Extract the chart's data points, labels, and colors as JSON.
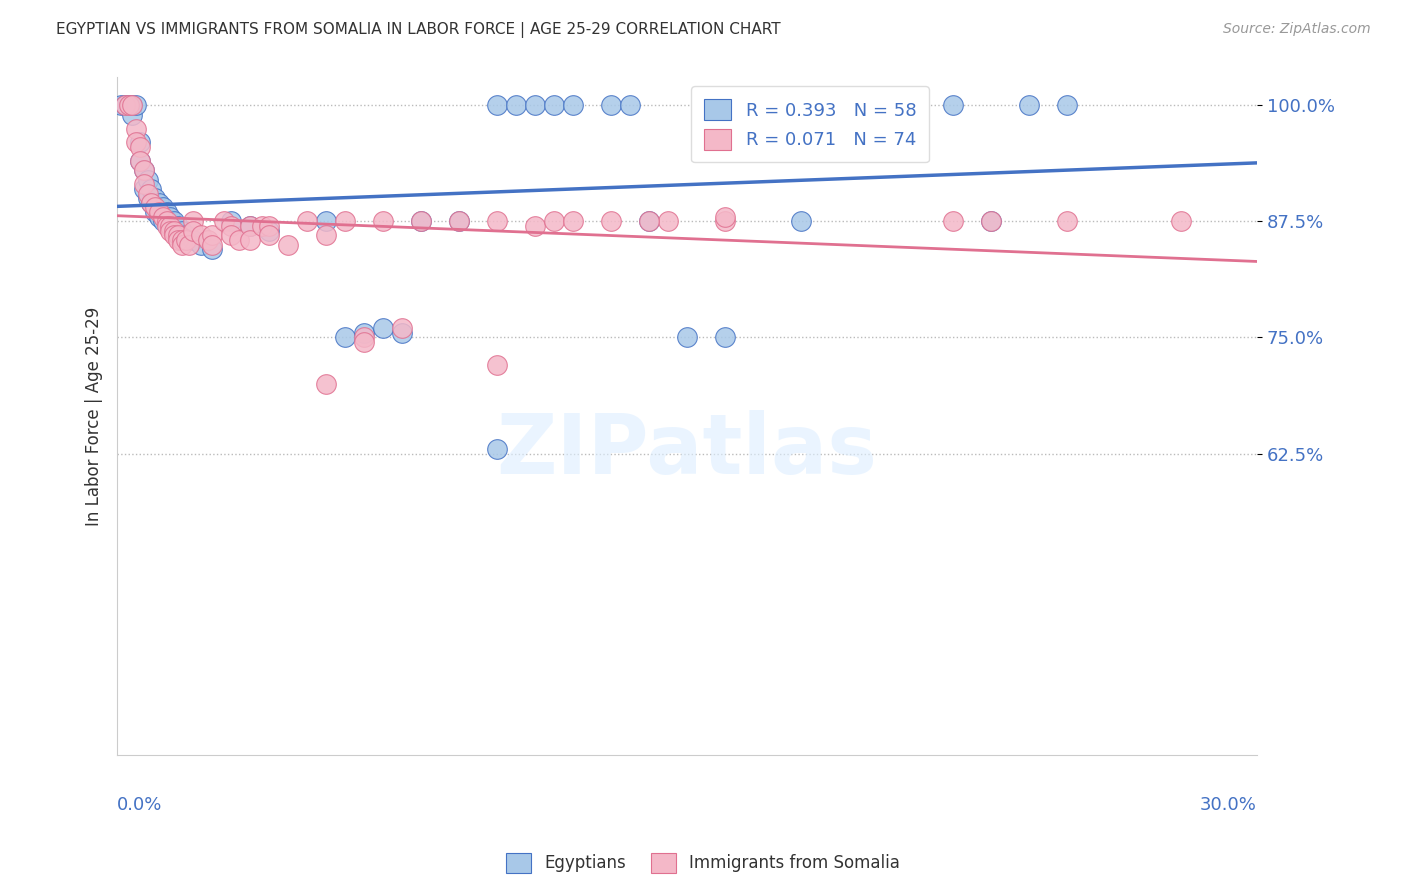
{
  "title": "EGYPTIAN VS IMMIGRANTS FROM SOMALIA IN LABOR FORCE | AGE 25-29 CORRELATION CHART",
  "source": "Source: ZipAtlas.com",
  "ylabel": "In Labor Force | Age 25-29",
  "xmin": 0.0,
  "xmax": 0.3,
  "ymin": 0.3,
  "ymax": 1.03,
  "blue_color": "#A8C8E8",
  "pink_color": "#F4B8C8",
  "blue_line_color": "#4472C4",
  "pink_line_color": "#E07090",
  "blue_scatter": [
    [
      0.001,
      1.0
    ],
    [
      0.002,
      1.0
    ],
    [
      0.003,
      1.0
    ],
    [
      0.004,
      1.0
    ],
    [
      0.004,
      0.99
    ],
    [
      0.005,
      1.0
    ],
    [
      0.006,
      0.96
    ],
    [
      0.006,
      0.94
    ],
    [
      0.007,
      0.93
    ],
    [
      0.007,
      0.91
    ],
    [
      0.008,
      0.92
    ],
    [
      0.008,
      0.9
    ],
    [
      0.009,
      0.91
    ],
    [
      0.009,
      0.895
    ],
    [
      0.01,
      0.9
    ],
    [
      0.01,
      0.885
    ],
    [
      0.011,
      0.895
    ],
    [
      0.011,
      0.88
    ],
    [
      0.012,
      0.89
    ],
    [
      0.012,
      0.875
    ],
    [
      0.013,
      0.885
    ],
    [
      0.014,
      0.88
    ],
    [
      0.014,
      0.87
    ],
    [
      0.015,
      0.875
    ],
    [
      0.015,
      0.865
    ],
    [
      0.016,
      0.87
    ],
    [
      0.016,
      0.86
    ],
    [
      0.017,
      0.865
    ],
    [
      0.018,
      0.86
    ],
    [
      0.02,
      0.855
    ],
    [
      0.022,
      0.85
    ],
    [
      0.025,
      0.845
    ],
    [
      0.03,
      0.875
    ],
    [
      0.035,
      0.87
    ],
    [
      0.04,
      0.865
    ],
    [
      0.055,
      0.875
    ],
    [
      0.06,
      0.75
    ],
    [
      0.065,
      0.755
    ],
    [
      0.07,
      0.76
    ],
    [
      0.075,
      0.755
    ],
    [
      0.08,
      0.875
    ],
    [
      0.09,
      0.875
    ],
    [
      0.1,
      1.0
    ],
    [
      0.105,
      1.0
    ],
    [
      0.11,
      1.0
    ],
    [
      0.115,
      1.0
    ],
    [
      0.12,
      1.0
    ],
    [
      0.13,
      1.0
    ],
    [
      0.135,
      1.0
    ],
    [
      0.14,
      0.875
    ],
    [
      0.15,
      0.75
    ],
    [
      0.16,
      0.75
    ],
    [
      0.18,
      0.875
    ],
    [
      0.2,
      1.0
    ],
    [
      0.21,
      1.0
    ],
    [
      0.22,
      1.0
    ],
    [
      0.23,
      0.875
    ],
    [
      0.24,
      1.0
    ],
    [
      0.25,
      1.0
    ],
    [
      0.1,
      0.63
    ]
  ],
  "pink_scatter": [
    [
      0.002,
      1.0
    ],
    [
      0.003,
      1.0
    ],
    [
      0.004,
      1.0
    ],
    [
      0.005,
      0.975
    ],
    [
      0.005,
      0.96
    ],
    [
      0.006,
      0.955
    ],
    [
      0.006,
      0.94
    ],
    [
      0.007,
      0.93
    ],
    [
      0.007,
      0.915
    ],
    [
      0.008,
      0.905
    ],
    [
      0.009,
      0.895
    ],
    [
      0.01,
      0.89
    ],
    [
      0.011,
      0.885
    ],
    [
      0.012,
      0.88
    ],
    [
      0.013,
      0.875
    ],
    [
      0.013,
      0.87
    ],
    [
      0.014,
      0.87
    ],
    [
      0.014,
      0.865
    ],
    [
      0.015,
      0.865
    ],
    [
      0.015,
      0.86
    ],
    [
      0.016,
      0.86
    ],
    [
      0.016,
      0.855
    ],
    [
      0.017,
      0.855
    ],
    [
      0.017,
      0.85
    ],
    [
      0.018,
      0.855
    ],
    [
      0.019,
      0.85
    ],
    [
      0.02,
      0.875
    ],
    [
      0.02,
      0.865
    ],
    [
      0.022,
      0.86
    ],
    [
      0.024,
      0.855
    ],
    [
      0.025,
      0.86
    ],
    [
      0.025,
      0.85
    ],
    [
      0.028,
      0.875
    ],
    [
      0.03,
      0.87
    ],
    [
      0.03,
      0.86
    ],
    [
      0.032,
      0.855
    ],
    [
      0.035,
      0.87
    ],
    [
      0.035,
      0.855
    ],
    [
      0.038,
      0.87
    ],
    [
      0.04,
      0.87
    ],
    [
      0.04,
      0.86
    ],
    [
      0.045,
      0.85
    ],
    [
      0.05,
      0.875
    ],
    [
      0.055,
      0.86
    ],
    [
      0.06,
      0.875
    ],
    [
      0.065,
      0.75
    ],
    [
      0.065,
      0.745
    ],
    [
      0.07,
      0.875
    ],
    [
      0.075,
      0.76
    ],
    [
      0.08,
      0.875
    ],
    [
      0.09,
      0.875
    ],
    [
      0.1,
      0.875
    ],
    [
      0.11,
      0.87
    ],
    [
      0.115,
      0.875
    ],
    [
      0.12,
      0.875
    ],
    [
      0.13,
      0.875
    ],
    [
      0.145,
      0.875
    ],
    [
      0.16,
      0.875
    ],
    [
      0.055,
      0.7
    ],
    [
      0.1,
      0.72
    ],
    [
      0.14,
      0.875
    ],
    [
      0.16,
      0.88
    ],
    [
      0.22,
      0.875
    ],
    [
      0.23,
      0.875
    ],
    [
      0.25,
      0.875
    ],
    [
      0.28,
      0.875
    ]
  ]
}
